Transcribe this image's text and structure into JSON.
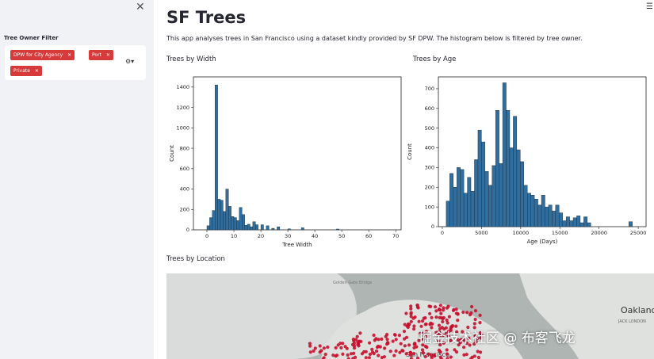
{
  "sidebar": {
    "close_icon": "close-icon",
    "filter_label": "Tree Owner Filter",
    "chips": [
      "DPW for City Agency",
      "Port",
      "Private"
    ],
    "chip_color": "#d63a3a",
    "settings_icon": "gear-icon"
  },
  "header": {
    "menu_icon": "hamburger-icon"
  },
  "main": {
    "title": "SF Trees",
    "intro": "This app analyses trees in San Francisco using a dataset kindly provided by SF DPW. The histogram below is filtered by tree owner.",
    "sections": {
      "width": "Trees by Width",
      "age": "Trees by Age",
      "location": "Trees by Location"
    }
  },
  "map": {
    "labels": {
      "bridge": "Golden Gate Bridge",
      "oakland": "Oakland",
      "jack_london": "JACK LONDON",
      "sf": "San Francisco"
    },
    "point_color": "#c8102e"
  },
  "watermark": "掘金技术社区 @ 布客飞龙",
  "chart_data": [
    {
      "type": "bar",
      "name": "width",
      "xlabel": "Tree Width",
      "ylabel": "Count",
      "xlim": [
        -5,
        72
      ],
      "ylim": [
        0,
        1500
      ],
      "xticks": [
        0,
        10,
        20,
        30,
        40,
        50,
        60,
        70
      ],
      "yticks": [
        0,
        200,
        400,
        600,
        800,
        1000,
        1200,
        1400
      ],
      "bar_width": 1,
      "color": "#2f6e9e",
      "x": [
        0,
        1,
        2,
        3,
        4,
        5,
        6,
        7,
        8,
        9,
        10,
        11,
        12,
        13,
        14,
        15,
        16,
        17,
        18,
        20,
        22,
        24,
        26,
        30,
        35,
        48
      ],
      "values": [
        40,
        120,
        190,
        1420,
        300,
        290,
        180,
        400,
        230,
        130,
        120,
        90,
        220,
        150,
        45,
        55,
        30,
        80,
        50,
        50,
        40,
        15,
        30,
        10,
        20,
        8
      ]
    },
    {
      "type": "bar",
      "name": "age",
      "xlabel": "Age (Days)",
      "ylabel": "Count",
      "xlim": [
        -500,
        26000
      ],
      "ylim": [
        0,
        760
      ],
      "xticks": [
        0,
        5000,
        10000,
        15000,
        20000,
        25000
      ],
      "yticks": [
        0,
        100,
        200,
        300,
        400,
        500,
        600,
        700
      ],
      "bar_width": 450,
      "color": "#2f6e9e",
      "x": [
        500,
        950,
        1400,
        1850,
        2300,
        2750,
        3200,
        3650,
        4100,
        4550,
        5000,
        5450,
        5900,
        6350,
        6800,
        7250,
        7700,
        8150,
        8600,
        9050,
        9500,
        9950,
        10400,
        10850,
        11300,
        11750,
        12200,
        12650,
        13100,
        13550,
        14000,
        14450,
        14900,
        15350,
        15800,
        16250,
        16700,
        17150,
        17600,
        18050,
        18500,
        23800
      ],
      "values": [
        130,
        270,
        200,
        300,
        290,
        170,
        250,
        180,
        340,
        490,
        430,
        280,
        210,
        310,
        590,
        320,
        730,
        590,
        400,
        560,
        390,
        330,
        210,
        170,
        160,
        140,
        110,
        160,
        100,
        110,
        80,
        110,
        70,
        30,
        50,
        30,
        45,
        55,
        20,
        50,
        20,
        25
      ]
    }
  ]
}
